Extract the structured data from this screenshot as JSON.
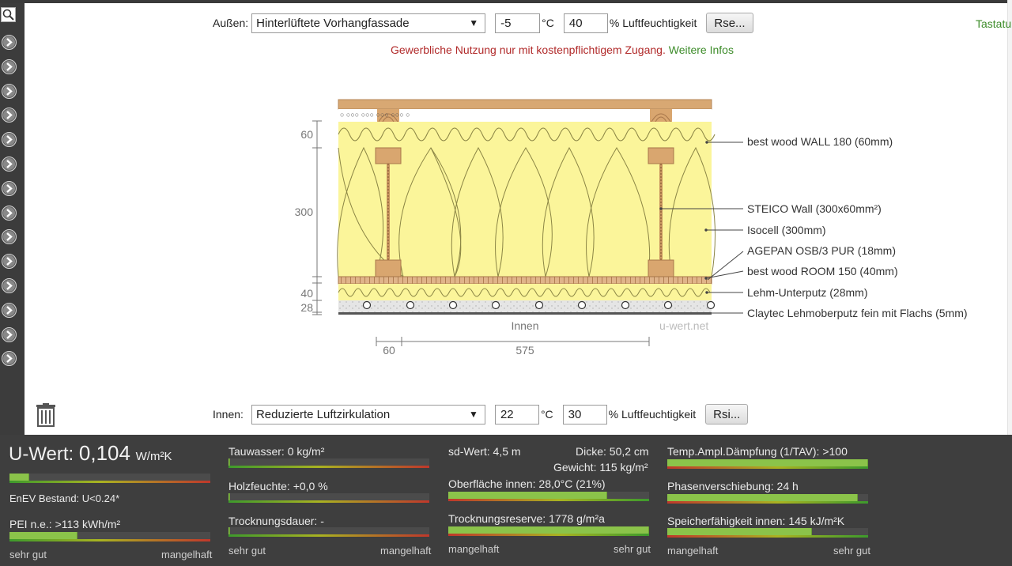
{
  "outside": {
    "label": "Außen:",
    "select_value": "Hinterlüftete Vorhangfassade",
    "temperature": "-5",
    "temp_unit": "°C",
    "humidity": "40",
    "humidity_label": "% Luftfeuchtigkeit",
    "button": "Rse..."
  },
  "keyboard_link": "Tastatu",
  "notice": {
    "text": "Gewerbliche Nutzung nur mit kostenpflichtigem Zugang.",
    "link": "Weitere Infos"
  },
  "diagram": {
    "layers": [
      "best wood WALL 180 (60mm)",
      "STEICO  Wall (300x60mm²)",
      "Isocell (300mm)",
      "AGEPAN OSB/3 PUR (18mm)",
      "best wood ROOM 150 (40mm)",
      "Lehm-Unterputz (28mm)",
      "Claytec Lehmoberputz fein mit Flachs (5mm)"
    ],
    "dims_vertical": [
      "60",
      "300",
      "40",
      "28"
    ],
    "dims_horizontal": [
      "60",
      "575"
    ],
    "inside_label": "Innen",
    "watermark": "u-wert.net"
  },
  "inside": {
    "label": "Innen:",
    "select_value": "Reduzierte Luftzirkulation",
    "temperature": "22",
    "temp_unit": "°C",
    "humidity": "30",
    "humidity_label": "% Luftfeuchtigkeit",
    "button": "Rsi..."
  },
  "results": {
    "uwert_label": "U-Wert:",
    "uwert_value": "0,104",
    "uwert_unit": "W/m²K",
    "uwert_fill": 0.1,
    "enev": "EnEV Bestand: U<0.24*",
    "pei": "PEI n.e.: >113 kWh/m²",
    "pei_fill": 0.34,
    "scale_good": "sehr gut",
    "scale_bad": "mangelhaft",
    "tauwasser": "Tauwasser: 0 kg/m²",
    "holzfeuchte": "Holzfeuchte: +0,0 %",
    "trocknungsdauer": "Trocknungsdauer: -",
    "sd": "sd-Wert: 4,5 m",
    "dicke": "Dicke: 50,2 cm",
    "gewicht": "Gewicht: 115 kg/m²",
    "oberflaeche": "Oberfläche innen: 28,0°C (21%)",
    "oberflaeche_fill": 0.79,
    "trocknungsreserve": "Trocknungsreserve: 1778 g/m²a",
    "trocknungsreserve_fill": 1.0,
    "temp_amp": "Temp.Ampl.Dämpfung (1/TAV): >100",
    "temp_amp_fill": 1.0,
    "phase": "Phasenverschiebung: 24 h",
    "phase_fill": 0.95,
    "speicher": "Speicherfähigkeit innen: 145 kJ/m²K",
    "speicher_fill": 0.72
  }
}
